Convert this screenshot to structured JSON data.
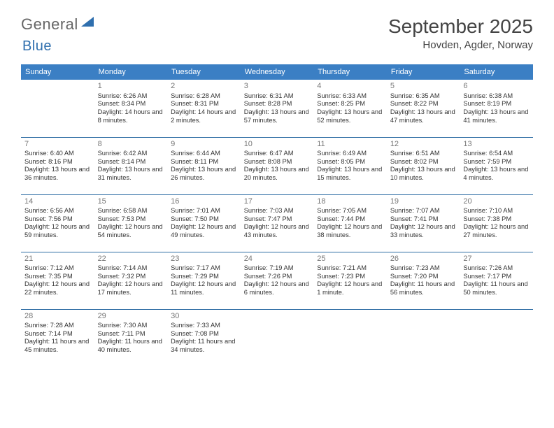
{
  "brand": {
    "word1": "General",
    "word2": "Blue"
  },
  "title": "September 2025",
  "location": "Hovden, Agder, Norway",
  "weekdays": [
    "Sunday",
    "Monday",
    "Tuesday",
    "Wednesday",
    "Thursday",
    "Friday",
    "Saturday"
  ],
  "colors": {
    "header": "#3b7fc4",
    "row_line": "#2e6da4",
    "text": "#333333",
    "daynum": "#777777",
    "background": "#ffffff"
  },
  "layout": {
    "start_blanks": 1,
    "days_in_month": 30,
    "cols": 7
  },
  "days": {
    "1": {
      "sr": "6:26 AM",
      "ss": "8:34 PM",
      "dl": "14 hours and 8 minutes."
    },
    "2": {
      "sr": "6:28 AM",
      "ss": "8:31 PM",
      "dl": "14 hours and 2 minutes."
    },
    "3": {
      "sr": "6:31 AM",
      "ss": "8:28 PM",
      "dl": "13 hours and 57 minutes."
    },
    "4": {
      "sr": "6:33 AM",
      "ss": "8:25 PM",
      "dl": "13 hours and 52 minutes."
    },
    "5": {
      "sr": "6:35 AM",
      "ss": "8:22 PM",
      "dl": "13 hours and 47 minutes."
    },
    "6": {
      "sr": "6:38 AM",
      "ss": "8:19 PM",
      "dl": "13 hours and 41 minutes."
    },
    "7": {
      "sr": "6:40 AM",
      "ss": "8:16 PM",
      "dl": "13 hours and 36 minutes."
    },
    "8": {
      "sr": "6:42 AM",
      "ss": "8:14 PM",
      "dl": "13 hours and 31 minutes."
    },
    "9": {
      "sr": "6:44 AM",
      "ss": "8:11 PM",
      "dl": "13 hours and 26 minutes."
    },
    "10": {
      "sr": "6:47 AM",
      "ss": "8:08 PM",
      "dl": "13 hours and 20 minutes."
    },
    "11": {
      "sr": "6:49 AM",
      "ss": "8:05 PM",
      "dl": "13 hours and 15 minutes."
    },
    "12": {
      "sr": "6:51 AM",
      "ss": "8:02 PM",
      "dl": "13 hours and 10 minutes."
    },
    "13": {
      "sr": "6:54 AM",
      "ss": "7:59 PM",
      "dl": "13 hours and 4 minutes."
    },
    "14": {
      "sr": "6:56 AM",
      "ss": "7:56 PM",
      "dl": "12 hours and 59 minutes."
    },
    "15": {
      "sr": "6:58 AM",
      "ss": "7:53 PM",
      "dl": "12 hours and 54 minutes."
    },
    "16": {
      "sr": "7:01 AM",
      "ss": "7:50 PM",
      "dl": "12 hours and 49 minutes."
    },
    "17": {
      "sr": "7:03 AM",
      "ss": "7:47 PM",
      "dl": "12 hours and 43 minutes."
    },
    "18": {
      "sr": "7:05 AM",
      "ss": "7:44 PM",
      "dl": "12 hours and 38 minutes."
    },
    "19": {
      "sr": "7:07 AM",
      "ss": "7:41 PM",
      "dl": "12 hours and 33 minutes."
    },
    "20": {
      "sr": "7:10 AM",
      "ss": "7:38 PM",
      "dl": "12 hours and 27 minutes."
    },
    "21": {
      "sr": "7:12 AM",
      "ss": "7:35 PM",
      "dl": "12 hours and 22 minutes."
    },
    "22": {
      "sr": "7:14 AM",
      "ss": "7:32 PM",
      "dl": "12 hours and 17 minutes."
    },
    "23": {
      "sr": "7:17 AM",
      "ss": "7:29 PM",
      "dl": "12 hours and 11 minutes."
    },
    "24": {
      "sr": "7:19 AM",
      "ss": "7:26 PM",
      "dl": "12 hours and 6 minutes."
    },
    "25": {
      "sr": "7:21 AM",
      "ss": "7:23 PM",
      "dl": "12 hours and 1 minute."
    },
    "26": {
      "sr": "7:23 AM",
      "ss": "7:20 PM",
      "dl": "11 hours and 56 minutes."
    },
    "27": {
      "sr": "7:26 AM",
      "ss": "7:17 PM",
      "dl": "11 hours and 50 minutes."
    },
    "28": {
      "sr": "7:28 AM",
      "ss": "7:14 PM",
      "dl": "11 hours and 45 minutes."
    },
    "29": {
      "sr": "7:30 AM",
      "ss": "7:11 PM",
      "dl": "11 hours and 40 minutes."
    },
    "30": {
      "sr": "7:33 AM",
      "ss": "7:08 PM",
      "dl": "11 hours and 34 minutes."
    }
  },
  "labels": {
    "sunrise": "Sunrise:",
    "sunset": "Sunset:",
    "daylight": "Daylight:"
  }
}
